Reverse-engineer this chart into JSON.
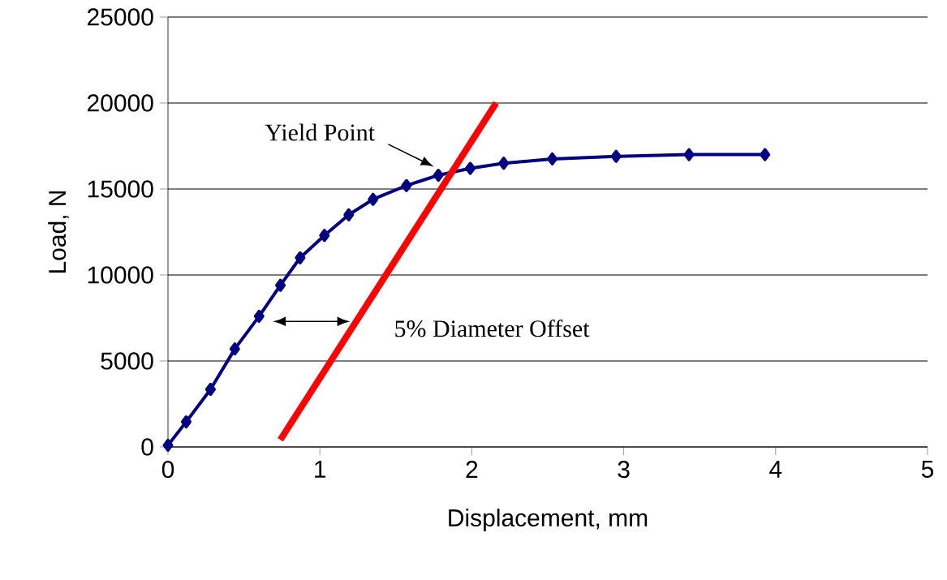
{
  "chart_data": {
    "type": "line",
    "xlabel": "Displacement, mm",
    "ylabel": "Load, N",
    "xlim": [
      0,
      5
    ],
    "xticks": [
      0,
      1,
      2,
      3,
      4,
      5
    ],
    "ylim": [
      0,
      25000
    ],
    "yticks": [
      0,
      5000,
      10000,
      15000,
      20000,
      25000
    ],
    "grid": "y",
    "series": [
      {
        "color": "#000080",
        "marker": "diamond",
        "x": [
          0,
          0.12,
          0.28,
          0.44,
          0.6,
          0.74,
          0.87,
          1.03,
          1.19,
          1.35,
          1.57,
          1.78,
          1.99,
          2.21,
          2.53,
          2.95,
          3.43,
          3.93
        ],
        "values": [
          100,
          1460,
          3350,
          5700,
          7600,
          9400,
          11000,
          12300,
          13500,
          14400,
          15200,
          15800,
          16200,
          16500,
          16750,
          16900,
          17000,
          17000
        ]
      },
      {
        "color": "#ff0000",
        "marker": "none",
        "x": [
          0.74,
          2.16
        ],
        "values": [
          420,
          20000
        ]
      }
    ],
    "annotations": [
      "Yield Point",
      "5% Diameter Offset"
    ]
  }
}
